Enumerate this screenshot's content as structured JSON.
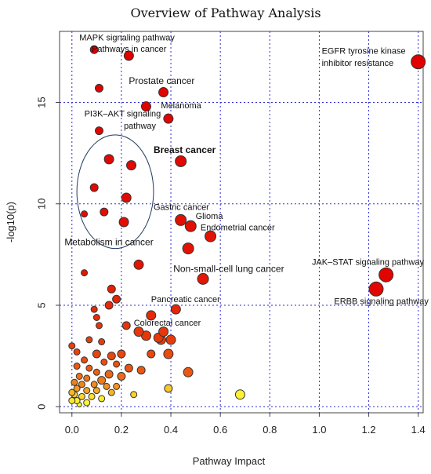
{
  "chart_data": {
    "type": "scatter",
    "title": "Overview of Pathway Analysis",
    "xlabel": "Pathway Impact",
    "ylabel": "-log10(p)",
    "xlim": [
      -0.05,
      1.42
    ],
    "ylim": [
      -0.3,
      18.5
    ],
    "x_ticks": [
      {
        "value": 0.0,
        "label": "0.0"
      },
      {
        "value": 0.2,
        "label": "0.2"
      },
      {
        "value": 0.4,
        "label": "0.4"
      },
      {
        "value": 0.6,
        "label": "0.6"
      },
      {
        "value": 0.8,
        "label": "0.8"
      },
      {
        "value": 1.0,
        "label": "1.0"
      },
      {
        "value": 1.2,
        "label": "1.2"
      },
      {
        "value": 1.4,
        "label": "1.4"
      }
    ],
    "y_ticks": [
      {
        "value": 0,
        "label": "0"
      },
      {
        "value": 5,
        "label": "5"
      },
      {
        "value": 10,
        "label": "10"
      },
      {
        "value": 15,
        "label": "15"
      }
    ],
    "grid": true,
    "color_scale": {
      "low": "#ffff33",
      "high": "#e00000"
    },
    "points": [
      {
        "x": 1.4,
        "y": 17.0,
        "r": 9,
        "c": 1.0
      },
      {
        "x": 1.27,
        "y": 6.5,
        "r": 9,
        "c": 0.98
      },
      {
        "x": 1.23,
        "y": 5.8,
        "r": 9,
        "c": 0.97
      },
      {
        "x": 0.23,
        "y": 17.3,
        "r": 6,
        "c": 1.0
      },
      {
        "x": 0.09,
        "y": 17.6,
        "r": 5,
        "c": 1.0
      },
      {
        "x": 0.37,
        "y": 15.5,
        "r": 6,
        "c": 0.99
      },
      {
        "x": 0.11,
        "y": 15.7,
        "r": 5,
        "c": 0.99
      },
      {
        "x": 0.3,
        "y": 14.8,
        "r": 6,
        "c": 0.99
      },
      {
        "x": 0.39,
        "y": 14.2,
        "r": 6,
        "c": 0.98
      },
      {
        "x": 0.11,
        "y": 13.6,
        "r": 5,
        "c": 0.98
      },
      {
        "x": 0.44,
        "y": 12.1,
        "r": 7,
        "c": 0.97
      },
      {
        "x": 0.15,
        "y": 12.2,
        "r": 6,
        "c": 0.97
      },
      {
        "x": 0.24,
        "y": 11.9,
        "r": 6,
        "c": 0.97
      },
      {
        "x": 0.09,
        "y": 10.8,
        "r": 5,
        "c": 0.96
      },
      {
        "x": 0.22,
        "y": 10.3,
        "r": 6,
        "c": 0.96
      },
      {
        "x": 0.13,
        "y": 9.6,
        "r": 5,
        "c": 0.95
      },
      {
        "x": 0.05,
        "y": 9.5,
        "r": 4,
        "c": 0.95
      },
      {
        "x": 0.21,
        "y": 9.1,
        "r": 6,
        "c": 0.95
      },
      {
        "x": 0.44,
        "y": 9.2,
        "r": 7,
        "c": 0.94
      },
      {
        "x": 0.48,
        "y": 8.9,
        "r": 7,
        "c": 0.94
      },
      {
        "x": 0.56,
        "y": 8.4,
        "r": 7,
        "c": 0.93
      },
      {
        "x": 0.47,
        "y": 7.8,
        "r": 7,
        "c": 0.93
      },
      {
        "x": 0.27,
        "y": 7.0,
        "r": 6,
        "c": 0.92
      },
      {
        "x": 0.53,
        "y": 6.3,
        "r": 7,
        "c": 0.91
      },
      {
        "x": 0.05,
        "y": 6.6,
        "r": 4,
        "c": 0.91
      },
      {
        "x": 0.16,
        "y": 5.8,
        "r": 5,
        "c": 0.88
      },
      {
        "x": 0.18,
        "y": 5.3,
        "r": 5,
        "c": 0.86
      },
      {
        "x": 0.15,
        "y": 5.0,
        "r": 5,
        "c": 0.84
      },
      {
        "x": 0.09,
        "y": 4.8,
        "r": 4,
        "c": 0.83
      },
      {
        "x": 0.1,
        "y": 4.4,
        "r": 4,
        "c": 0.82
      },
      {
        "x": 0.42,
        "y": 4.8,
        "r": 6,
        "c": 0.85
      },
      {
        "x": 0.32,
        "y": 4.5,
        "r": 6,
        "c": 0.84
      },
      {
        "x": 0.11,
        "y": 4.0,
        "r": 4,
        "c": 0.8
      },
      {
        "x": 0.22,
        "y": 4.0,
        "r": 5,
        "c": 0.8
      },
      {
        "x": 0.27,
        "y": 3.7,
        "r": 6,
        "c": 0.79
      },
      {
        "x": 0.3,
        "y": 3.5,
        "r": 6,
        "c": 0.78
      },
      {
        "x": 0.35,
        "y": 3.4,
        "r": 6,
        "c": 0.78
      },
      {
        "x": 0.37,
        "y": 3.7,
        "r": 6,
        "c": 0.78
      },
      {
        "x": 0.36,
        "y": 3.3,
        "r": 6,
        "c": 0.77
      },
      {
        "x": 0.4,
        "y": 3.3,
        "r": 6,
        "c": 0.77
      },
      {
        "x": 0.07,
        "y": 3.3,
        "r": 4,
        "c": 0.76
      },
      {
        "x": 0.12,
        "y": 3.2,
        "r": 4,
        "c": 0.76
      },
      {
        "x": 0.0,
        "y": 3.0,
        "r": 4,
        "c": 0.75
      },
      {
        "x": 0.02,
        "y": 2.7,
        "r": 4,
        "c": 0.74
      },
      {
        "x": 0.1,
        "y": 2.6,
        "r": 5,
        "c": 0.73
      },
      {
        "x": 0.16,
        "y": 2.5,
        "r": 5,
        "c": 0.72
      },
      {
        "x": 0.2,
        "y": 2.6,
        "r": 5,
        "c": 0.72
      },
      {
        "x": 0.32,
        "y": 2.6,
        "r": 5,
        "c": 0.72
      },
      {
        "x": 0.39,
        "y": 2.6,
        "r": 6,
        "c": 0.71
      },
      {
        "x": 0.05,
        "y": 2.3,
        "r": 4,
        "c": 0.7
      },
      {
        "x": 0.13,
        "y": 2.2,
        "r": 4,
        "c": 0.69
      },
      {
        "x": 0.18,
        "y": 2.1,
        "r": 4,
        "c": 0.68
      },
      {
        "x": 0.23,
        "y": 1.9,
        "r": 5,
        "c": 0.67
      },
      {
        "x": 0.28,
        "y": 1.8,
        "r": 5,
        "c": 0.66
      },
      {
        "x": 0.47,
        "y": 1.7,
        "r": 6,
        "c": 0.66
      },
      {
        "x": 0.02,
        "y": 2.0,
        "r": 4,
        "c": 0.65
      },
      {
        "x": 0.07,
        "y": 1.9,
        "r": 4,
        "c": 0.64
      },
      {
        "x": 0.1,
        "y": 1.7,
        "r": 4,
        "c": 0.62
      },
      {
        "x": 0.15,
        "y": 1.6,
        "r": 5,
        "c": 0.6
      },
      {
        "x": 0.2,
        "y": 1.5,
        "r": 5,
        "c": 0.58
      },
      {
        "x": 0.03,
        "y": 1.5,
        "r": 4,
        "c": 0.56
      },
      {
        "x": 0.06,
        "y": 1.4,
        "r": 4,
        "c": 0.54
      },
      {
        "x": 0.12,
        "y": 1.3,
        "r": 5,
        "c": 0.52
      },
      {
        "x": 0.01,
        "y": 1.2,
        "r": 4,
        "c": 0.5
      },
      {
        "x": 0.04,
        "y": 1.1,
        "r": 4,
        "c": 0.48
      },
      {
        "x": 0.09,
        "y": 1.1,
        "r": 4,
        "c": 0.46
      },
      {
        "x": 0.14,
        "y": 1.0,
        "r": 4,
        "c": 0.44
      },
      {
        "x": 0.18,
        "y": 1.0,
        "r": 4,
        "c": 0.42
      },
      {
        "x": 0.02,
        "y": 0.9,
        "r": 4,
        "c": 0.4
      },
      {
        "x": 0.06,
        "y": 0.8,
        "r": 4,
        "c": 0.36
      },
      {
        "x": 0.1,
        "y": 0.8,
        "r": 4,
        "c": 0.34
      },
      {
        "x": 0.16,
        "y": 0.7,
        "r": 4,
        "c": 0.3
      },
      {
        "x": 0.39,
        "y": 0.9,
        "r": 5,
        "c": 0.22
      },
      {
        "x": 0.68,
        "y": 0.6,
        "r": 6,
        "c": 0.05
      },
      {
        "x": 0.25,
        "y": 0.6,
        "r": 4,
        "c": 0.18
      },
      {
        "x": 0.01,
        "y": 0.6,
        "r": 4,
        "c": 0.2
      },
      {
        "x": 0.04,
        "y": 0.5,
        "r": 4,
        "c": 0.16
      },
      {
        "x": 0.08,
        "y": 0.5,
        "r": 4,
        "c": 0.12
      },
      {
        "x": 0.12,
        "y": 0.4,
        "r": 4,
        "c": 0.08
      },
      {
        "x": 0.02,
        "y": 0.3,
        "r": 4,
        "c": 0.06
      },
      {
        "x": 0.06,
        "y": 0.2,
        "r": 4,
        "c": 0.04
      },
      {
        "x": 0.03,
        "y": 0.1,
        "r": 3,
        "c": 0.02
      },
      {
        "x": 0.0,
        "y": 0.3,
        "r": 4,
        "c": 0.1
      },
      {
        "x": 0.0,
        "y": 0.7,
        "r": 4,
        "c": 0.28
      }
    ],
    "annotations": [
      {
        "text": "MAPK signaling pathway",
        "x": 0.03,
        "y": 18.05,
        "size": "sm"
      },
      {
        "text": "Pathways in cancer",
        "x": 0.08,
        "y": 17.5,
        "size": "sm"
      },
      {
        "text": "EGFR tyrosine kinase",
        "x": 1.01,
        "y": 17.4,
        "size": "sm"
      },
      {
        "text": "inhibitor resistance",
        "x": 1.01,
        "y": 16.8,
        "size": "sm"
      },
      {
        "text": "Prostate cancer",
        "x": 0.23,
        "y": 15.9,
        "size": "lg"
      },
      {
        "text": "Melanoma",
        "x": 0.36,
        "y": 14.7,
        "size": "sm"
      },
      {
        "text": "PI3K–AKT signaling",
        "x": 0.05,
        "y": 14.3,
        "size": "sm"
      },
      {
        "text": "pathway",
        "x": 0.21,
        "y": 13.7,
        "size": "sm"
      },
      {
        "text": "Breast cancer",
        "x": 0.33,
        "y": 12.5,
        "size": "bold"
      },
      {
        "text": "Gastric cancer",
        "x": 0.33,
        "y": 9.7,
        "size": "sm"
      },
      {
        "text": "Glioma",
        "x": 0.5,
        "y": 9.25,
        "size": "sm"
      },
      {
        "text": "Endometrial cancer",
        "x": 0.52,
        "y": 8.7,
        "size": "sm"
      },
      {
        "text": "Metabolism in  cancer",
        "x": -0.03,
        "y": 7.95,
        "size": "lg"
      },
      {
        "text": "Non-small-cell lung cancer",
        "x": 0.41,
        "y": 6.65,
        "size": "lg"
      },
      {
        "text": "JAK–STAT signaling pathway",
        "x": 0.97,
        "y": 7.0,
        "size": "sm"
      },
      {
        "text": "ERBB signaling pathway",
        "x": 1.06,
        "y": 5.05,
        "size": "sm"
      },
      {
        "text": "Pancreatic cancer",
        "x": 0.32,
        "y": 5.15,
        "size": "sm"
      },
      {
        "text": "Colorectal cancer",
        "x": 0.25,
        "y": 4.0,
        "size": "sm"
      }
    ],
    "ellipse": {
      "cx": 0.175,
      "cy": 10.6,
      "rx": 0.155,
      "ry": 2.8
    }
  }
}
